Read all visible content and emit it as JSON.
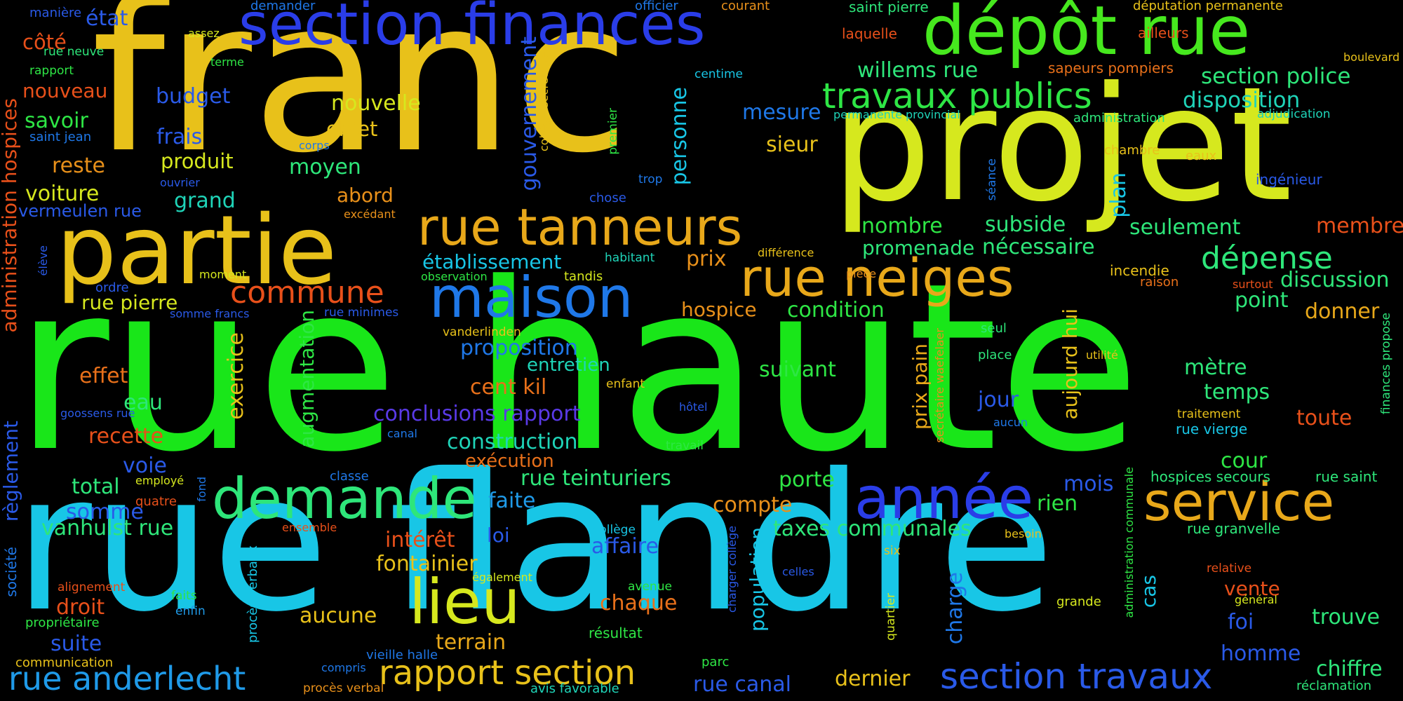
{
  "colors": {
    "yellow": "#e8c11a",
    "lime": "#d6e81e",
    "green": "#19e619",
    "mint": "#2ee67a",
    "teal": "#1fd4b8",
    "cyan": "#18c6e6",
    "blue": "#1f78e8",
    "navy": "#2a3de8",
    "orange": "#e8901a",
    "red": "#e83a1a",
    "background": "#000000"
  },
  "words": {
    "rue_haute": "rue haute",
    "franc": "franc",
    "rue_flandre": "rue flandre",
    "projet": "projet",
    "partie": "partie",
    "depot_rue": "dépôt rue",
    "section_finances": "section finances",
    "rue_tanneurs": "rue tanneurs",
    "rue_neiges": "rue neiges",
    "maison": "maison",
    "demande": "demande",
    "annee": "année",
    "service": "service",
    "lieu": "lieu",
    "travaux_publics": "travaux publics",
    "section_travaux": "section travaux",
    "rapport_section": "rapport section",
    "rue_anderlecht": "rue anderlecht",
    "commune": "commune",
    "depense": "dépense",
    "willems_rue": "willems rue",
    "section_police": "section police",
    "disposition": "disposition",
    "rue_canal": "rue canal",
    "taxes_communales": "taxes communales",
    "conclusions_rapport": "conclusions rapport",
    "construction": "construction",
    "proposition": "proposition",
    "etablissement": "établissement",
    "nouvelle": "nouvelle",
    "objet": "objet",
    "budget": "budget",
    "frais": "frais",
    "produit": "produit",
    "moyen": "moyen",
    "nouveau": "nouveau",
    "savoir": "savoir",
    "reste": "reste",
    "voiture": "voiture",
    "grand": "grand",
    "vermeulen_rue": "vermeulen rue",
    "rue_pierre": "rue pierre",
    "effet": "effet",
    "eau": "eau",
    "recette": "recette",
    "voie": "voie",
    "total": "total",
    "somme": "somme",
    "vanhulst_rue": "vanhulst rue",
    "droit": "droit",
    "suite": "suite",
    "cote": "côté",
    "etat": "état",
    "mesure": "mesure",
    "sieur": "sieur",
    "abord": "abord",
    "nombre": "nombre",
    "subside": "subside",
    "promenade": "promenade",
    "necessaire": "nécessaire",
    "seulement": "seulement",
    "membre": "membre",
    "plan": "plan",
    "prix": "prix",
    "hospice": "hospice",
    "condition": "condition",
    "point": "point",
    "discussion": "discussion",
    "donner": "donner",
    "suivant": "suivant",
    "metre": "mètre",
    "temps": "temps",
    "jour": "jour",
    "toute": "toute",
    "cent_kil": "cent kil",
    "entretien": "entretien",
    "execution": "exécution",
    "rue_teinturiers": "rue teinturiers",
    "porte": "porte",
    "cour": "cour",
    "mois": "mois",
    "rien": "rien",
    "faite": "faite",
    "compte": "compte",
    "interet": "intérêt",
    "fontainier": "fontainier",
    "loi": "loi",
    "affaire": "affaire",
    "chaque": "chaque",
    "aucune": "aucune",
    "terrain": "terrain",
    "dernier": "dernier",
    "vente": "vente",
    "foi": "foi",
    "trouve": "trouve",
    "homme": "homme",
    "chiffre": "chiffre",
    "hospices_secours": "hospices secours",
    "rue_saint": "rue saint",
    "rue_granvelle": "rue granvelle",
    "rue_vierge": "rue vierge",
    "traitement": "traitement",
    "incendie": "incendie",
    "raison": "raison",
    "surtout": "surtout",
    "deputation_permanente": "députation permanente",
    "ailleurs": "ailleurs",
    "boulevard": "boulevard",
    "sapeurs_pompiers": "sapeurs pompiers",
    "administration": "administration",
    "adjudication": "adjudication",
    "chambre": "chambre",
    "eaux": "eaux",
    "ingenieur": "ingénieur",
    "permanente_provincial": "permanente provincial",
    "centime": "centime",
    "laquelle": "laquelle",
    "saint_pierre": "saint pierre",
    "courant": "courant",
    "officier": "officier",
    "demander": "demander",
    "maniere": "manière",
    "rue_neuve": "rue neuve",
    "rapport": "rapport",
    "assez": "assez",
    "terme": "terme",
    "saint_jean": "saint jean",
    "corps": "corps",
    "ouvrier": "ouvrier",
    "chose": "chose",
    "trop": "trop",
    "excedant": "excédant",
    "eleve": "élève",
    "moment": "moment",
    "ordre": "ordre",
    "somme_francs": "somme francs",
    "rue_minimes": "rue minimes",
    "observation": "observation",
    "tandis": "tandis",
    "habitant": "habitant",
    "difference": "différence",
    "piece": "pièce",
    "goossens_rue": "goossens rue",
    "vanderlinden": "vanderlinden",
    "enfant": "enfant",
    "hotel": "hôtel",
    "canal": "canal",
    "seul": "seul",
    "place": "place",
    "utilite": "utilité",
    "aucun": "aucun",
    "travail": "travail",
    "classe": "classe",
    "employe": "employé",
    "quatre": "quatre",
    "ensemble": "ensemble",
    "college": "collège",
    "besoin": "besoin",
    "six": "six",
    "celles": "celles",
    "egalement": "également",
    "avenue": "avenue",
    "alignement": "alignement",
    "faits": "faits",
    "enfin": "enfin",
    "proprietaire": "propriétaire",
    "communication": "communication",
    "compris": "compris",
    "vieille_halle": "vieille halle",
    "proces_verbal": "procès verbal",
    "avis_favorable": "avis favorable",
    "parc": "parc",
    "resultat": "résultat",
    "grande": "grande",
    "relative": "relative",
    "general": "général",
    "reclamation": "réclamation",
    "societe": "société",
    "fond": "fond",
    "proces_verbaux": "procès verbaux",
    "charger_college": "charger collège",
    "quartier": "quartier",
    "charge": "charge",
    "cas": "cas",
    "population": "population",
    "prix_pain": "prix pain",
    "aujourd_hui": "aujourd hui",
    "secretaire_waefelaer": "secrétaire waefelaer",
    "administration_communale": "administration communale",
    "finances_propose": "finances propose",
    "reglement": "règlement",
    "administration_hospices": "administration hospices",
    "gouvernement": "gouvernement",
    "college_secretaire": "collège secrétaire",
    "premier": "premier",
    "personne": "personne",
    "seance": "séance",
    "exercice": "exercice",
    "augmentation": "augmentation"
  }
}
